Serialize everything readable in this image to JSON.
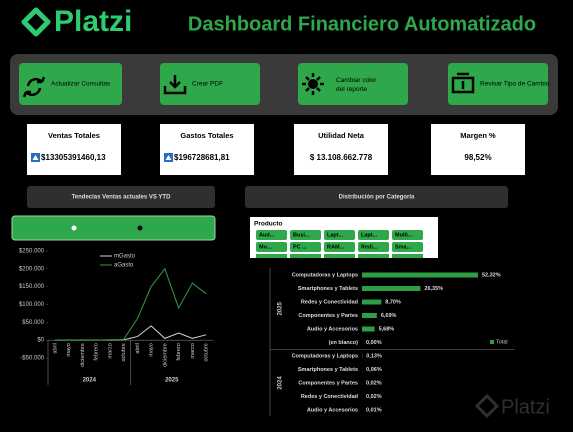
{
  "header": {
    "logo": "Platzi",
    "title": "Dashboard Financiero Automatizado"
  },
  "buttons": [
    "Actualizar Consultas",
    "Crear PDF",
    "Cambiar color del reporte",
    "Revisar Tipo de Cambio"
  ],
  "kpis": [
    {
      "label": "Ventas Totales",
      "value": "$13305391460,13"
    },
    {
      "label": "Gastos Totales",
      "value": "$196728681,81"
    },
    {
      "label": "Utilidad Neta",
      "value": "$ 13.108.662.778"
    },
    {
      "label": "Margen %",
      "value": "98,52%"
    }
  ],
  "sections": [
    "Tendecias Ventas actuales VS YTD",
    "Distribución por Categoría"
  ],
  "slicer": {
    "title": "Producto",
    "items": [
      "Aud...",
      "Busi...",
      "Lapt...",
      "Lapt...",
      "Multi...",
      "Mo...",
      "PC ...",
      "RAM...",
      "Redi...",
      "Sma..."
    ]
  },
  "watermark": "Platzi",
  "chart_data": [
    {
      "type": "line",
      "categories": [
        "abril",
        "mayo",
        "diciembre",
        "febrero",
        "marzo",
        "octubre",
        "abril",
        "mayo",
        "diciembre",
        "febrero",
        "marzo",
        "octubre"
      ],
      "groups": [
        "2024",
        "2025"
      ],
      "ylim": [
        -50000,
        250000
      ],
      "yticks": [
        {
          "value": 250000,
          "label": "$250.000"
        },
        {
          "value": 200000,
          "label": "$200.000"
        },
        {
          "value": 150000,
          "label": "$150.000"
        },
        {
          "value": 100000,
          "label": "$100.000"
        },
        {
          "value": 50000,
          "label": "$50.000"
        },
        {
          "value": 0,
          "label": "$0"
        },
        {
          "value": -50000,
          "label": "-$50.000"
        }
      ],
      "legend": "top-right",
      "series": [
        {
          "name": "mGasto",
          "color": "#d8d8d8",
          "values": [
            0,
            0,
            0,
            0,
            0,
            1000,
            10000,
            40000,
            5000,
            20000,
            5000,
            15000
          ]
        },
        {
          "name": "aGasto",
          "color": "#2e9e44",
          "values": [
            0,
            0,
            0,
            0,
            1000,
            2000,
            60000,
            150000,
            200000,
            90000,
            160000,
            130000
          ]
        }
      ]
    },
    {
      "type": "bar",
      "orientation": "horizontal",
      "xlim": [
        0,
        60
      ],
      "legend": "right",
      "series": {
        "name": "Total",
        "color": "#2e9e44"
      },
      "groups": [
        {
          "name": "2025",
          "categories": [
            "Computadoras y Laptops",
            "Smartphones y Tablets",
            "Redes y Conectividad",
            "Componentes y Partes",
            "Audio y Accesorios",
            "(en blanco)"
          ],
          "values": [
            52.32,
            26.35,
            8.7,
            6.69,
            5.68,
            0.0
          ],
          "value_labels": [
            "52,32%",
            "26,35%",
            "8,70%",
            "6,69%",
            "5,68%",
            "0,00%"
          ]
        },
        {
          "name": "2024",
          "categories": [
            "Computadoras y Laptops",
            "Smartphones y Tablets",
            "Componentes y Partes",
            "Redes y Conectividad",
            "Audio y Accesorios"
          ],
          "values": [
            0.13,
            0.06,
            0.02,
            0.02,
            0.01
          ],
          "value_labels": [
            "0,13%",
            "0,06%",
            "0,02%",
            "0,02%",
            "0,01%"
          ]
        }
      ]
    }
  ]
}
